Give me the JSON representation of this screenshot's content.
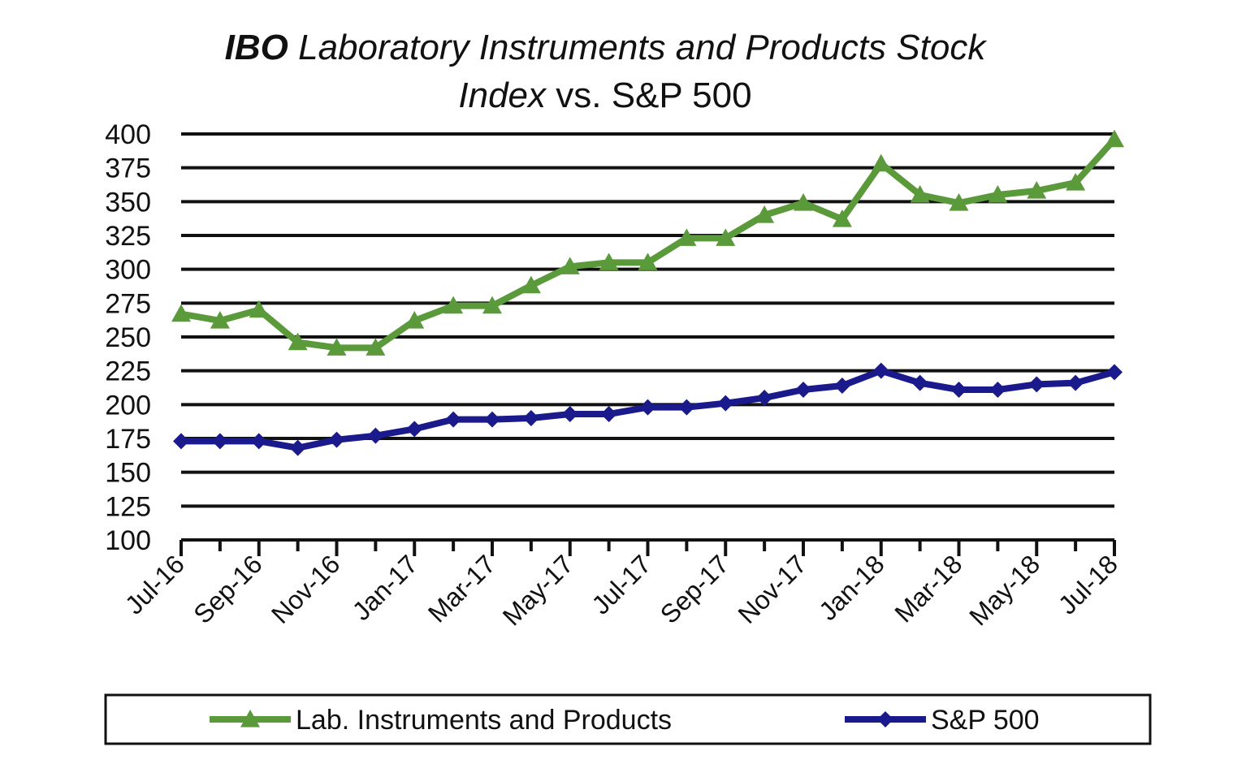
{
  "chart_data": {
    "type": "line",
    "title_parts": [
      {
        "text": "IBO",
        "style": "bold-italic"
      },
      {
        "text": " Laboratory Instruments and Products Stock",
        "style": "italic"
      },
      {
        "text": "Index",
        "style": "italic"
      },
      {
        "text": " vs. S&P 500",
        "style": "normal"
      }
    ],
    "x": [
      "Jul-16",
      "Aug-16",
      "Sep-16",
      "Oct-16",
      "Nov-16",
      "Dec-16",
      "Jan-17",
      "Feb-17",
      "Mar-17",
      "Apr-17",
      "May-17",
      "Jun-17",
      "Jul-17",
      "Aug-17",
      "Sep-17",
      "Oct-17",
      "Nov-17",
      "Dec-17",
      "Jan-18",
      "Feb-18",
      "Mar-18",
      "Apr-18",
      "May-18",
      "Jun-18",
      "Jul-18"
    ],
    "x_tick_labels": [
      "Jul-16",
      "Sep-16",
      "Nov-16",
      "Jan-17",
      "Mar-17",
      "May-17",
      "Jul-17",
      "Sep-17",
      "Nov-17",
      "Jan-18",
      "Mar-18",
      "May-18",
      "Jul-18"
    ],
    "y_ticks": [
      100,
      125,
      150,
      175,
      200,
      225,
      250,
      275,
      300,
      325,
      350,
      375,
      400
    ],
    "ylim": [
      100,
      400
    ],
    "grid": true,
    "legend_position": "bottom",
    "series": [
      {
        "name": "Lab. Instruments and Products",
        "color": "#5a9a3a",
        "marker": "triangle",
        "values": [
          267,
          262,
          270,
          246,
          242,
          242,
          262,
          273,
          273,
          288,
          302,
          305,
          305,
          323,
          323,
          340,
          349,
          337,
          378,
          355,
          349,
          355,
          358,
          364,
          396
        ]
      },
      {
        "name": "S&P 500",
        "color": "#1a1a8c",
        "marker": "diamond",
        "values": [
          173,
          173,
          173,
          168,
          174,
          177,
          182,
          189,
          189,
          190,
          193,
          193,
          198,
          198,
          201,
          205,
          211,
          214,
          225,
          216,
          211,
          211,
          215,
          216,
          224
        ]
      }
    ]
  }
}
